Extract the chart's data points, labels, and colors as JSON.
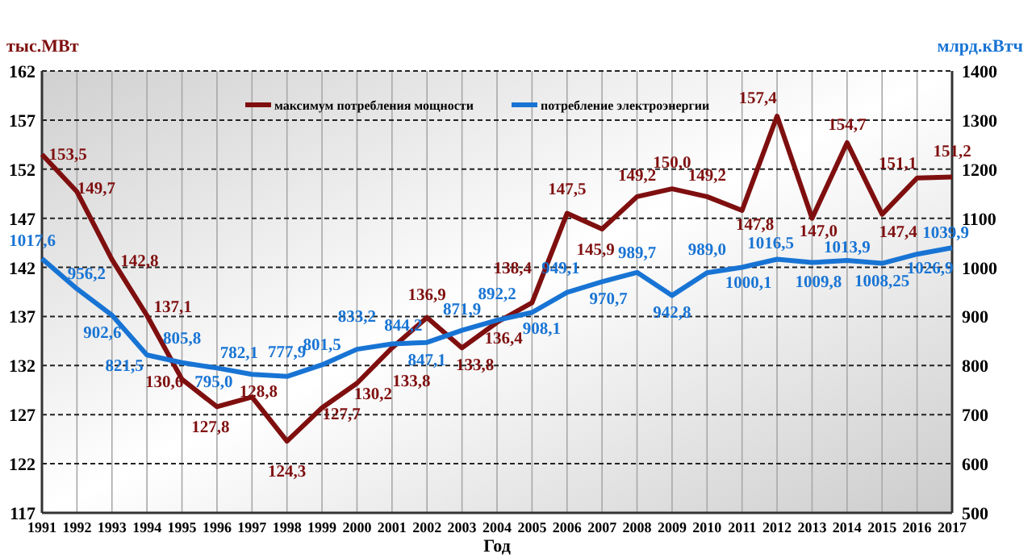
{
  "chart_data": {
    "type": "line",
    "xlabel": "Год",
    "ylabel": "тыс.МВт",
    "y2label": "млрд.кВтч",
    "x": [
      1991,
      1992,
      1993,
      1994,
      1995,
      1996,
      1997,
      1998,
      1999,
      2000,
      2001,
      2002,
      2003,
      2004,
      2005,
      2006,
      2007,
      2008,
      2009,
      2010,
      2011,
      2012,
      2013,
      2014,
      2015,
      2016,
      2017
    ],
    "xlim": [
      1991,
      2017
    ],
    "xticks": [
      1991,
      1992,
      1993,
      1994,
      1995,
      1996,
      1997,
      1998,
      1999,
      2000,
      2001,
      2002,
      2003,
      2004,
      2005,
      2006,
      2007,
      2008,
      2009,
      2010,
      2011,
      2012,
      2013,
      2014,
      2015,
      2016,
      2017
    ],
    "ylim": [
      117,
      162
    ],
    "yticks": [
      117,
      122,
      127,
      132,
      137,
      142,
      147,
      152,
      157,
      162
    ],
    "y2lim": [
      500,
      1400
    ],
    "y2ticks": [
      500,
      600,
      700,
      800,
      900,
      1000,
      1100,
      1200,
      1300,
      1400
    ],
    "grid": true,
    "legend": "top",
    "marker": "none",
    "line_style": "solid",
    "series": [
      {
        "name": "максимум потребления мощности",
        "color": "#7f0f0f",
        "values": [
          153.5,
          149.7,
          142.8,
          137.1,
          130.6,
          127.8,
          128.8,
          124.3,
          127.7,
          130.2,
          133.8,
          136.9,
          133.8,
          136.4,
          138.4,
          147.5,
          145.9,
          149.2,
          150.0,
          149.2,
          147.8,
          157.4,
          147.0,
          154.7,
          147.4,
          151.1,
          151.2
        ],
        "value_labels": [
          "153,5",
          "149,7",
          "142,8",
          "137,1",
          "130,6",
          "127,8",
          "128,8",
          "124,3",
          "127,7",
          "130,2",
          "133,8",
          "136,9",
          "133,8",
          "136,4",
          "138,4",
          "147,5",
          "145,9",
          "149,2",
          "150,0",
          "149,2",
          "147,8",
          "157,4",
          "147,0",
          "154,7",
          "147,4",
          "151,1",
          "151,2"
        ]
      },
      {
        "name": "потребление электроэнергии",
        "color": "#1874d4",
        "axis": "y2",
        "values": [
          1017.6,
          956.2,
          902.6,
          821.5,
          805.8,
          795.0,
          782.1,
          777.9,
          801.5,
          833.2,
          844.2,
          847.1,
          871.9,
          892.2,
          908.1,
          949.1,
          970.7,
          989.7,
          942.8,
          989.0,
          1000.1,
          1016.5,
          1009.8,
          1013.9,
          1008.25,
          1026.9,
          1039.9
        ],
        "value_labels": [
          "1017,6",
          "956,2",
          "902,6",
          "821,5",
          "805,8",
          "795,0",
          "782,1",
          "777,9",
          "801,5",
          "833,2",
          "844,2",
          "847,1",
          "871,9",
          "892,2",
          "908,1",
          "949,1",
          "970,7",
          "989,7",
          "942,8",
          "989,0",
          "1000,1",
          "1016,5",
          "1009,8",
          "1013,9",
          "1008,25",
          "1026,9",
          "1039,9"
        ]
      }
    ]
  }
}
